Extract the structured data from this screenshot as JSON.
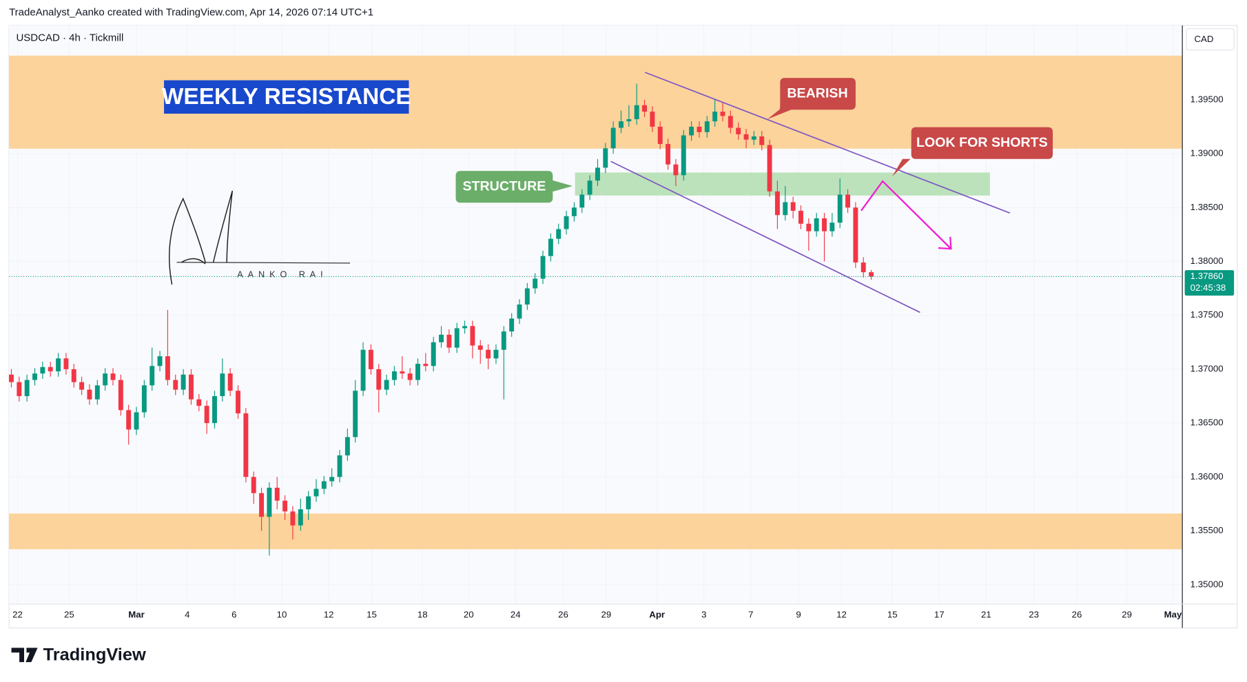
{
  "chart_data": {
    "type": "candlestick",
    "title": "USDCAD · 4h · Tickmill",
    "credit": "TradeAnalyst_Aanko created with TradingView.com, Apr 14, 2026 07:14 UTC+1",
    "currency": "CAD",
    "countdown": "02:45:38",
    "current_price": {
      "value": 1.3786,
      "label": "1.37860"
    },
    "annotations": [
      "WEEKLY RESISTANCE",
      "STRUCTURE",
      "BEARISH",
      "LOOK FOR SHORTS"
    ],
    "signature": "AANKO RAI",
    "footer": "TradingView",
    "up_color": "#089981",
    "down_color": "#f23645",
    "ylim": [
      1.3482,
      1.4019
    ],
    "yticks": [
      {
        "value": 1.35,
        "label": "1.35000"
      },
      {
        "value": 1.355,
        "label": "1.35500"
      },
      {
        "value": 1.36,
        "label": "1.36000"
      },
      {
        "value": 1.365,
        "label": "1.36500"
      },
      {
        "value": 1.37,
        "label": "1.37000"
      },
      {
        "value": 1.375,
        "label": "1.37500"
      },
      {
        "value": 1.38,
        "label": "1.38000"
      },
      {
        "value": 1.385,
        "label": "1.38500"
      },
      {
        "value": 1.39,
        "label": "1.39000"
      },
      {
        "value": 1.395,
        "label": "1.39500"
      }
    ],
    "xlim": [
      -0.3,
      149.8
    ],
    "xticks": [
      {
        "value": 0.8,
        "label": "22"
      },
      {
        "value": 7.4,
        "label": "25"
      },
      {
        "value": 16,
        "label": "Mar"
      },
      {
        "value": 22.5,
        "label": "4"
      },
      {
        "value": 28.5,
        "label": "6"
      },
      {
        "value": 34.6,
        "label": "10"
      },
      {
        "value": 40.6,
        "label": "12"
      },
      {
        "value": 46.1,
        "label": "15"
      },
      {
        "value": 52.6,
        "label": "18"
      },
      {
        "value": 58.5,
        "label": "20"
      },
      {
        "value": 64.5,
        "label": "24"
      },
      {
        "value": 70.6,
        "label": "26"
      },
      {
        "value": 76.1,
        "label": "29"
      },
      {
        "value": 82.6,
        "label": "Apr"
      },
      {
        "value": 88.6,
        "label": "3"
      },
      {
        "value": 94.6,
        "label": "7"
      },
      {
        "value": 100.7,
        "label": "9"
      },
      {
        "value": 106.2,
        "label": "12"
      },
      {
        "value": 112.7,
        "label": "15"
      },
      {
        "value": 118.7,
        "label": "17"
      },
      {
        "value": 124.7,
        "label": "21"
      },
      {
        "value": 130.8,
        "label": "23"
      },
      {
        "value": 136.3,
        "label": "26"
      },
      {
        "value": 142.7,
        "label": "29"
      },
      {
        "value": 148.6,
        "label": "May"
      }
    ],
    "open": [
      1.3695,
      1.3688,
      1.3675,
      1.369,
      1.3696,
      1.3702,
      1.3698,
      1.371,
      1.37,
      1.3688,
      1.3681,
      1.3672,
      1.3685,
      1.3696,
      1.369,
      1.3662,
      1.3644,
      1.366,
      1.3685,
      1.3703,
      1.3712,
      1.369,
      1.3681,
      1.3695,
      1.3672,
      1.3666,
      1.365,
      1.3675,
      1.3696,
      1.368,
      1.3659,
      1.36,
      1.3585,
      1.3563,
      1.359,
      1.3578,
      1.3568,
      1.3555,
      1.357,
      1.3582,
      1.3589,
      1.3596,
      1.36,
      1.362,
      1.3637,
      1.368,
      1.3718,
      1.37,
      1.3681,
      1.369,
      1.3698,
      1.3696,
      1.369,
      1.3705,
      1.3703,
      1.3725,
      1.3732,
      1.372,
      1.3738,
      1.374,
      1.3722,
      1.3718,
      1.371,
      1.3718,
      1.3735,
      1.3747,
      1.376,
      1.3775,
      1.3784,
      1.3805,
      1.3821,
      1.383,
      1.3842,
      1.385,
      1.3862,
      1.3875,
      1.3887,
      1.3905,
      1.3924,
      1.393,
      1.3932,
      1.3945,
      1.3939,
      1.3925,
      1.3909,
      1.389,
      1.388,
      1.3917,
      1.3925,
      1.392,
      1.393,
      1.3939,
      1.3935,
      1.3924,
      1.3918,
      1.3913,
      1.3916,
      1.3908,
      1.3865,
      1.3843,
      1.3855,
      1.3847,
      1.3835,
      1.3828,
      1.384,
      1.3828,
      1.3836,
      1.3862,
      1.385,
      1.3799,
      1.379
    ],
    "high": [
      1.37,
      1.3693,
      1.3695,
      1.3701,
      1.3707,
      1.3707,
      1.3715,
      1.3715,
      1.3705,
      1.3693,
      1.3686,
      1.369,
      1.3701,
      1.3701,
      1.3695,
      1.3667,
      1.3665,
      1.369,
      1.372,
      1.3717,
      1.3755,
      1.3695,
      1.37,
      1.37,
      1.3677,
      1.3671,
      1.368,
      1.371,
      1.3701,
      1.3685,
      1.3664,
      1.3605,
      1.359,
      1.3595,
      1.36,
      1.3583,
      1.3573,
      1.358,
      1.3587,
      1.3598,
      1.3601,
      1.3608,
      1.3625,
      1.3645,
      1.369,
      1.3725,
      1.3723,
      1.3705,
      1.3695,
      1.3703,
      1.3712,
      1.3701,
      1.371,
      1.3715,
      1.373,
      1.374,
      1.3737,
      1.3743,
      1.3745,
      1.3745,
      1.3727,
      1.3723,
      1.3723,
      1.374,
      1.3752,
      1.3765,
      1.378,
      1.3789,
      1.381,
      1.3826,
      1.3835,
      1.3847,
      1.3855,
      1.3867,
      1.388,
      1.3895,
      1.391,
      1.393,
      1.394,
      1.3945,
      1.3965,
      1.395,
      1.3944,
      1.393,
      1.3914,
      1.3895,
      1.3922,
      1.393,
      1.393,
      1.3935,
      1.395,
      1.3948,
      1.394,
      1.3929,
      1.3923,
      1.3921,
      1.3921,
      1.3913,
      1.3875,
      1.387,
      1.386,
      1.3852,
      1.384,
      1.3845,
      1.3845,
      1.3845,
      1.3877,
      1.3867,
      1.3855,
      1.3804,
      1.3792
    ],
    "low": [
      1.3683,
      1.367,
      1.367,
      1.3685,
      1.3691,
      1.3693,
      1.3693,
      1.3695,
      1.3683,
      1.3676,
      1.3667,
      1.3667,
      1.368,
      1.3685,
      1.3657,
      1.363,
      1.3639,
      1.3655,
      1.368,
      1.3698,
      1.3685,
      1.3676,
      1.3676,
      1.3667,
      1.3661,
      1.364,
      1.3645,
      1.367,
      1.3675,
      1.3654,
      1.3595,
      1.3575,
      1.355,
      1.3527,
      1.357,
      1.356,
      1.3542,
      1.355,
      1.356,
      1.3577,
      1.3584,
      1.3591,
      1.3595,
      1.3615,
      1.3632,
      1.3675,
      1.3695,
      1.366,
      1.3676,
      1.3685,
      1.3691,
      1.3685,
      1.3685,
      1.3698,
      1.3698,
      1.372,
      1.3715,
      1.3715,
      1.3733,
      1.371,
      1.3705,
      1.37,
      1.3705,
      1.3672,
      1.373,
      1.3742,
      1.3755,
      1.377,
      1.3779,
      1.38,
      1.3816,
      1.3825,
      1.3837,
      1.3845,
      1.3857,
      1.387,
      1.3882,
      1.39,
      1.3919,
      1.3925,
      1.3927,
      1.3934,
      1.392,
      1.3904,
      1.3885,
      1.387,
      1.3875,
      1.3912,
      1.3915,
      1.3915,
      1.3925,
      1.393,
      1.3919,
      1.3913,
      1.3905,
      1.3908,
      1.3903,
      1.386,
      1.383,
      1.3838,
      1.384,
      1.383,
      1.381,
      1.3823,
      1.38,
      1.3823,
      1.3831,
      1.3845,
      1.3794,
      1.3785,
      1.3783
    ],
    "close": [
      1.3688,
      1.3675,
      1.369,
      1.3696,
      1.3702,
      1.3698,
      1.371,
      1.37,
      1.3688,
      1.3681,
      1.3672,
      1.3685,
      1.3696,
      1.369,
      1.3662,
      1.3644,
      1.366,
      1.3685,
      1.3703,
      1.3712,
      1.369,
      1.3681,
      1.3695,
      1.3672,
      1.3666,
      1.365,
      1.3675,
      1.3696,
      1.368,
      1.3659,
      1.36,
      1.3585,
      1.3563,
      1.359,
      1.3578,
      1.3568,
      1.3555,
      1.357,
      1.3582,
      1.3589,
      1.3596,
      1.36,
      1.362,
      1.3637,
      1.368,
      1.3718,
      1.37,
      1.3681,
      1.369,
      1.3698,
      1.3696,
      1.369,
      1.3705,
      1.3703,
      1.3725,
      1.3732,
      1.372,
      1.3738,
      1.374,
      1.3722,
      1.3718,
      1.371,
      1.3718,
      1.3735,
      1.3747,
      1.376,
      1.3775,
      1.3784,
      1.3805,
      1.3821,
      1.383,
      1.3842,
      1.385,
      1.3862,
      1.3875,
      1.3887,
      1.3905,
      1.3924,
      1.393,
      1.3932,
      1.3945,
      1.3939,
      1.3925,
      1.3909,
      1.389,
      1.388,
      1.3917,
      1.3925,
      1.392,
      1.393,
      1.3939,
      1.3935,
      1.3924,
      1.3918,
      1.3913,
      1.3916,
      1.3908,
      1.3865,
      1.3843,
      1.3855,
      1.3847,
      1.3835,
      1.3828,
      1.384,
      1.3828,
      1.3836,
      1.3862,
      1.385,
      1.3799,
      1.379,
      1.3786
    ]
  }
}
